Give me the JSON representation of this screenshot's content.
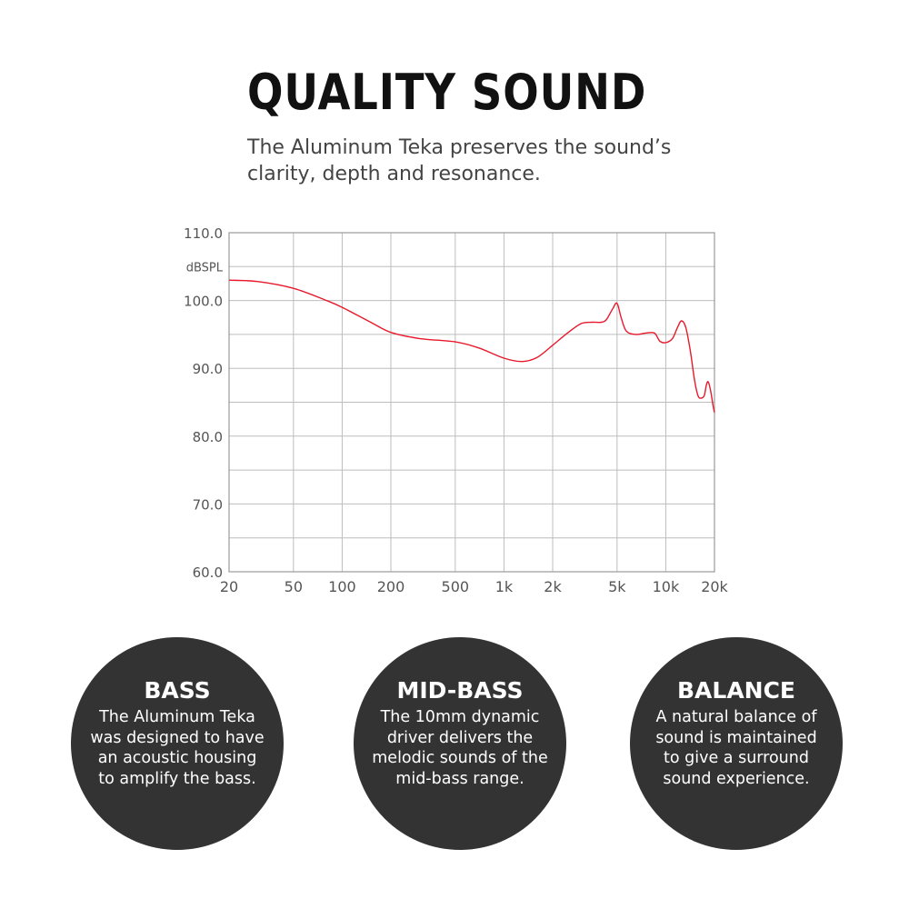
{
  "header": {
    "title": "QUALITY SOUND",
    "subtitle": "The Aluminum Teka preserves the sound’s clarity, depth and resonance."
  },
  "chart_data": {
    "type": "line",
    "ylabel": "dBSPL",
    "ylim": [
      60,
      110
    ],
    "yticks": [
      "110.0",
      "100.0",
      "90.0",
      "80.0",
      "70.0",
      "60.0"
    ],
    "x_scale": "log",
    "xlim": [
      20,
      20000
    ],
    "xticks": [
      {
        "v": 20,
        "label": "20"
      },
      {
        "v": 50,
        "label": "50"
      },
      {
        "v": 100,
        "label": "100"
      },
      {
        "v": 200,
        "label": "200"
      },
      {
        "v": 500,
        "label": "500"
      },
      {
        "v": 1000,
        "label": "1k"
      },
      {
        "v": 2000,
        "label": "2k"
      },
      {
        "v": 5000,
        "label": "5k"
      },
      {
        "v": 10000,
        "label": "10k"
      },
      {
        "v": 20000,
        "label": "20k"
      }
    ],
    "grid": true,
    "line_color": "#e8192c",
    "series": [
      {
        "x": [
          20,
          30,
          50,
          80,
          100,
          150,
          200,
          300,
          500,
          700,
          1000,
          1300,
          1600,
          2000,
          2500,
          3000,
          3500,
          4000,
          4300,
          4700,
          5000,
          5300,
          5700,
          6500,
          7500,
          8500,
          9200,
          10000,
          11000,
          11800,
          12500,
          13300,
          14200,
          15000,
          15800,
          16500,
          17300,
          17800,
          18300,
          19000,
          19600,
          20000
        ],
        "y": [
          103,
          102.8,
          101.8,
          100,
          99,
          96.8,
          95.3,
          94.4,
          93.9,
          93,
          91.5,
          91,
          91.6,
          93.4,
          95.3,
          96.6,
          96.8,
          96.8,
          97.2,
          98.8,
          99.6,
          97.5,
          95.5,
          95,
          95.2,
          95.2,
          94,
          93.8,
          94.4,
          96,
          97,
          96,
          92.5,
          88.5,
          86,
          85.6,
          86,
          87.5,
          88,
          86.5,
          84.5,
          83.5
        ]
      }
    ]
  },
  "features": [
    {
      "title": "BASS",
      "text": "The Aluminum Teka was designed to have an acoustic housing to amplify the bass."
    },
    {
      "title": "MID-BASS",
      "text": "The 10mm dynamic driver delivers the melodic sounds of the mid-bass range."
    },
    {
      "title": "BALANCE",
      "text": "A natural balance of sound is maintained to give a surround sound experience."
    }
  ]
}
